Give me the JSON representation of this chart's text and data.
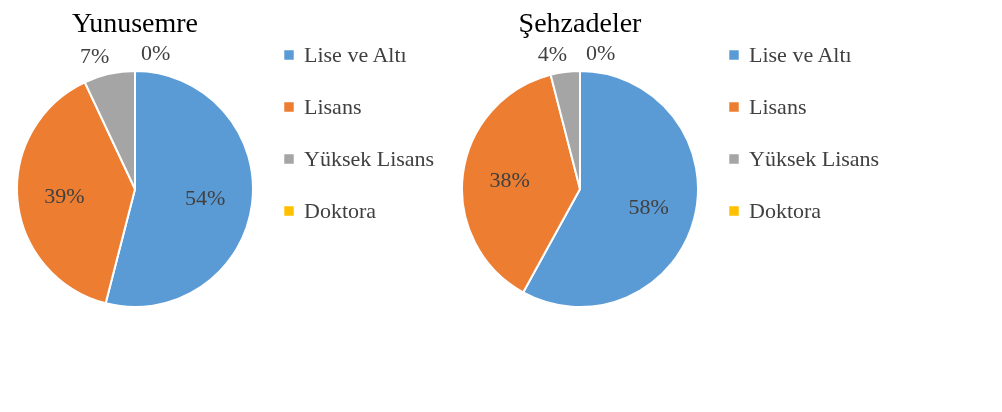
{
  "chart_data": [
    {
      "type": "pie",
      "title": "Yunusemre",
      "categories": [
        "Lise ve Altı",
        "Lisans",
        "Yüksek Lisans",
        "Doktora"
      ],
      "values": [
        54,
        39,
        7,
        0
      ],
      "colors": [
        "#5b9bd5",
        "#ed7d31",
        "#a5a5a5",
        "#ffc000"
      ],
      "value_labels": [
        "54%",
        "39%",
        "7%",
        "0%"
      ],
      "legend": "right"
    },
    {
      "type": "pie",
      "title": "Şehzadeler",
      "categories": [
        "Lise ve Altı",
        "Lisans",
        "Yüksek Lisans",
        "Doktora"
      ],
      "values": [
        58,
        38,
        4,
        0
      ],
      "colors": [
        "#5b9bd5",
        "#ed7d31",
        "#a5a5a5",
        "#ffc000"
      ],
      "value_labels": [
        "58%",
        "38%",
        "4%",
        "0%"
      ],
      "legend": "right"
    }
  ]
}
